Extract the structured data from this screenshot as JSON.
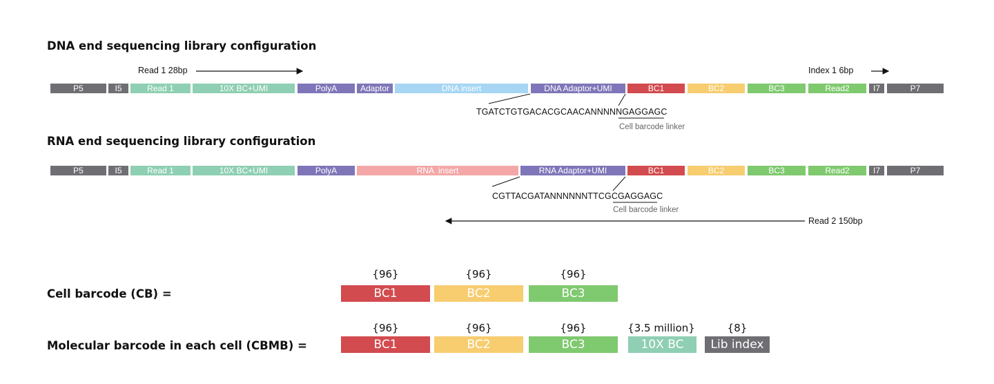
{
  "colors": {
    "grey": "#6f6f73",
    "teal": "#8fcfb3",
    "purple": "#7e76b8",
    "lightblue": "#a6d6f3",
    "red": "#d24b4f",
    "yellow": "#f7cd70",
    "green": "#7fc96f",
    "pink": "#f4a7a7"
  },
  "dna": {
    "title": "DNA end sequencing library configuration",
    "read1_label": "Read 1 28bp",
    "index_label": "Index 1 6bp",
    "segments": [
      "P5",
      "I5",
      "Read 1",
      "10X BC+UMI",
      "PolyA",
      "Adaptor",
      "DNA insert",
      "DNA Adaptor+UMI",
      "BC1",
      "BC2",
      "BC3",
      "Read2",
      "I7",
      "P7"
    ],
    "sequence": "TGATCTGTGACACGCAACANNNNNGAGGAGC",
    "linker_label": "Cell barcode linker"
  },
  "rna": {
    "title": "RNA end sequencing library configuration",
    "segments": [
      "P5",
      "I5",
      "Read 1",
      "10X BC+UMI",
      "PolyA",
      "RNA  insert",
      "RNA Adaptor+UMI",
      "BC1",
      "BC2",
      "BC3",
      "Read2",
      "I7",
      "P7"
    ],
    "sequence": "CGTTACGATANNNNNNTTCGCGAGGAGC",
    "linker_label": "Cell barcode linker",
    "read2_label": "Read 2 150bp"
  },
  "cb": {
    "label": "Cell barcode (CB) =",
    "counts": [
      "{96}",
      "{96}",
      "{96}"
    ],
    "blocks": [
      "BC1",
      "BC2",
      "BC3"
    ]
  },
  "cbmb": {
    "label": "Molecular barcode in each cell (CBMB) =",
    "counts": [
      "{96}",
      "{96}",
      "{96}",
      "{3.5 million}",
      "{8}"
    ],
    "blocks": [
      "BC1",
      "BC2",
      "BC3",
      "10X BC",
      "Lib index"
    ]
  }
}
